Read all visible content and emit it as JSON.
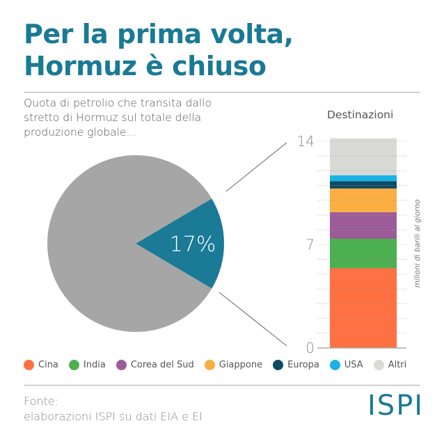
{
  "title_line1": "Per la prima volta,",
  "title_line2": "Hormuz è chiuso",
  "subtitle": "Quota di petrolio che transita dallo stretto di Hormuz sul totale della produzione globale...",
  "footer": {
    "source_label": "Fonte:",
    "source_text": "elaborazioni ISPI su dati EIA e EI",
    "logo": "ISPI"
  },
  "chart_data": [
    {
      "type": "pie",
      "values": [
        17,
        83
      ],
      "labels": [
        "17%",
        ""
      ],
      "colors": [
        "#1b7a96",
        "#a6a6a6"
      ]
    },
    {
      "type": "bar",
      "stacked": true,
      "title": "Destinazioni",
      "ylabel": "milioni di barili al giorno",
      "ylim": [
        0,
        14
      ],
      "yticks": [
        0,
        7,
        14
      ],
      "grid": true,
      "categories": [
        "Destinazioni"
      ],
      "series": [
        {
          "name": "Cina",
          "values": [
            5.4
          ],
          "color": "#ff7043"
        },
        {
          "name": "India",
          "values": [
            2.0
          ],
          "color": "#4caf50"
        },
        {
          "name": "Corea del Sud",
          "values": [
            1.8
          ],
          "color": "#9c5c97"
        },
        {
          "name": "Giappone",
          "values": [
            1.6
          ],
          "color": "#fbae42"
        },
        {
          "name": "Europa",
          "values": [
            0.5
          ],
          "color": "#0e4a63"
        },
        {
          "name": "USA",
          "values": [
            0.4
          ],
          "color": "#19b3e6"
        },
        {
          "name": "Altri",
          "values": [
            2.5
          ],
          "color": "#d9d9d6"
        }
      ]
    }
  ]
}
